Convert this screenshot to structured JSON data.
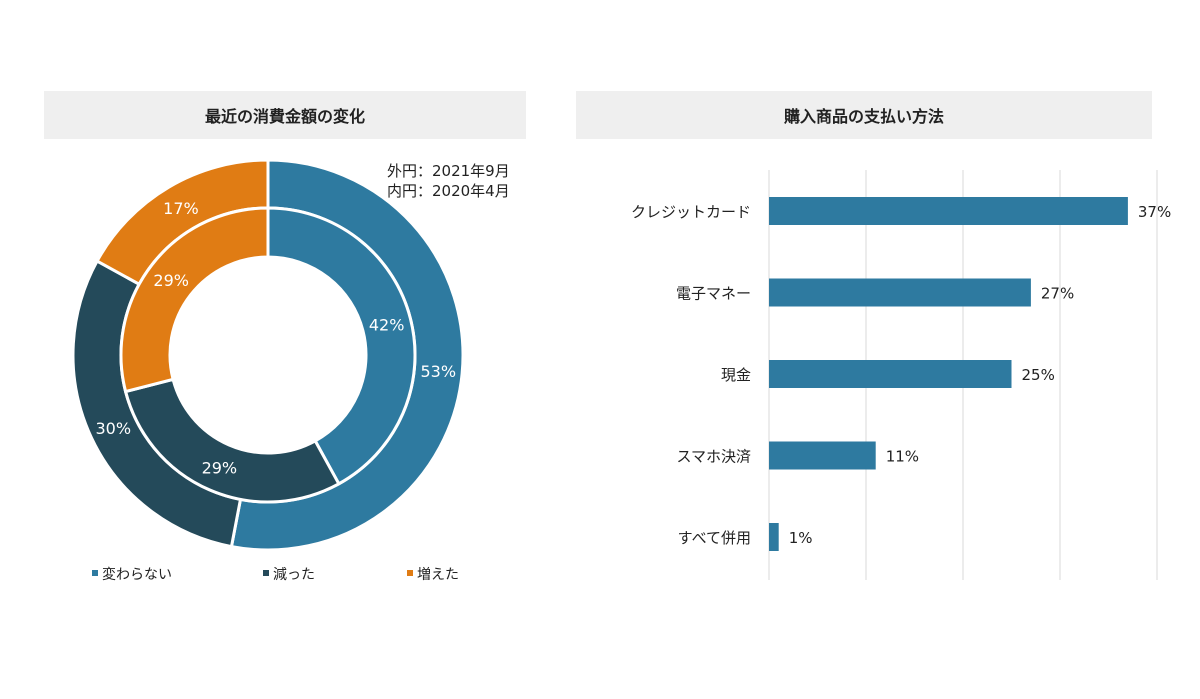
{
  "colors": {
    "unchanged": "#2e7aa0",
    "decreased": "#244a5a",
    "increased": "#e07c14",
    "bar": "#2e7aa0",
    "title_bg": "#efefef",
    "grid": "#d9d9d9"
  },
  "left_panel": {
    "title": "最近の消費金額の変化",
    "note_outer": "外円：2021年9月",
    "note_inner": "内円：2020年4月"
  },
  "right_panel": {
    "title": "購入商品の支払い方法"
  },
  "chart_data": [
    {
      "type": "pie",
      "variant": "double-donut",
      "title": "最近の消費金額の変化",
      "annotations": [
        "外円：2021年9月",
        "内円：2020年4月"
      ],
      "categories": [
        "変わらない",
        "減った",
        "増えた"
      ],
      "series": [
        {
          "name": "外円：2021年9月",
          "values": [
            53,
            30,
            17
          ]
        },
        {
          "name": "内円：2020年4月",
          "values": [
            42,
            29,
            29
          ]
        }
      ],
      "unit": "%",
      "legend_position": "bottom"
    },
    {
      "type": "bar",
      "orientation": "horizontal",
      "title": "購入商品の支払い方法",
      "categories": [
        "クレジットカード",
        "電子マネー",
        "現金",
        "スマホ決済",
        "すべて併用"
      ],
      "values": [
        37,
        27,
        25,
        11,
        1
      ],
      "unit": "%",
      "xlim": [
        0,
        40
      ],
      "grid": true
    }
  ]
}
